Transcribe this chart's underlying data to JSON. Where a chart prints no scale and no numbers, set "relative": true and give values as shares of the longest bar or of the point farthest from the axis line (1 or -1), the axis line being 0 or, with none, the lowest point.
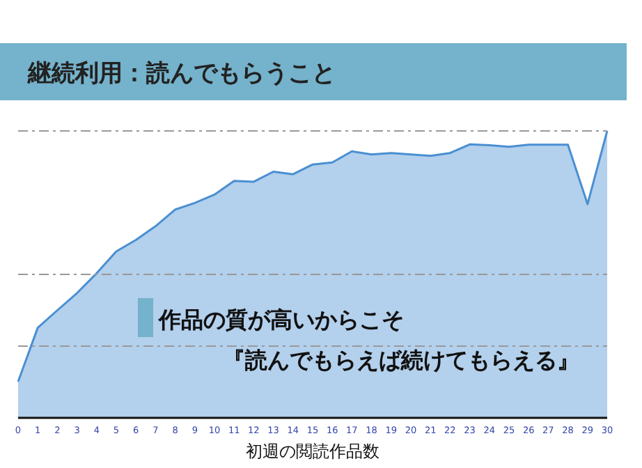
{
  "chart_data": {
    "type": "area",
    "title": "継続利用：読んでもらうこと",
    "xlabel": "初週の閲読作品数",
    "relative": true,
    "x": [
      0,
      1,
      2,
      3,
      4,
      5,
      6,
      7,
      8,
      9,
      10,
      11,
      12,
      13,
      14,
      15,
      16,
      17,
      18,
      19,
      20,
      21,
      22,
      23,
      24,
      25,
      26,
      27,
      28,
      29,
      30
    ],
    "series": [
      {
        "color": "#4a8fd2",
        "values": [
          0.126,
          0.314,
          0.375,
          0.435,
          0.504,
          0.58,
          0.62,
          0.668,
          0.726,
          0.749,
          0.778,
          0.826,
          0.823,
          0.858,
          0.849,
          0.883,
          0.89,
          0.929,
          0.918,
          0.923,
          0.918,
          0.913,
          0.923,
          0.953,
          0.95,
          0.945,
          0.952,
          0.952,
          0.952,
          0.745,
          1
        ]
      }
    ],
    "xlim": [
      0,
      30
    ],
    "xticks": [
      0,
      1,
      2,
      3,
      4,
      5,
      6,
      7,
      8,
      9,
      10,
      11,
      12,
      13,
      14,
      15,
      16,
      17,
      18,
      19,
      20,
      21,
      22,
      23,
      24,
      25,
      26,
      27,
      28,
      29,
      30
    ],
    "ref_lines": [
      {
        "axis": "y",
        "value": 1,
        "color": "#999999",
        "line_style": "dashed"
      },
      {
        "axis": "y",
        "value": 0.5,
        "color": "#999999",
        "line_style": "dashed"
      },
      {
        "axis": "y",
        "value": 0.25,
        "color": "#999999",
        "line_style": "dashed"
      }
    ],
    "annotations": [
      "作品の質が高いからこそ",
      "『読んでもらえば続けてもらえる』"
    ]
  }
}
